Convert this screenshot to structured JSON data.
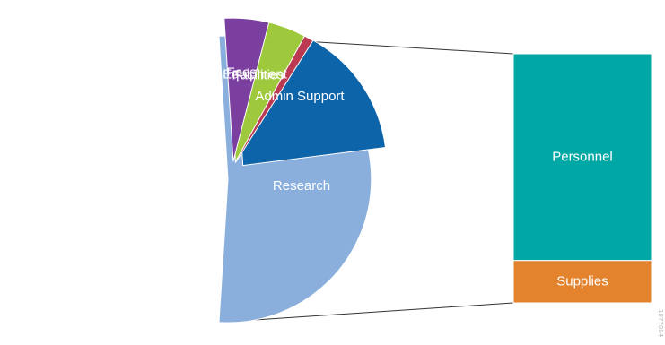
{
  "chart_data": {
    "type": "pie",
    "subtype": "bar-of-pie",
    "title": "",
    "series": [
      {
        "name": "",
        "slices": [
          {
            "label": "Research",
            "value": 52,
            "color": "#8aafdc"
          },
          {
            "label": "Admin Support",
            "value": 24,
            "color": "#0e64a8"
          },
          {
            "label": "Facilities",
            "value": 10,
            "color": "#bb3a52"
          },
          {
            "label": "Equipment",
            "value": 9,
            "color": "#9fc93d"
          },
          {
            "label": "Fees",
            "value": 5,
            "color": "#7b3fa0"
          }
        ]
      },
      {
        "name": "",
        "breakdown_of": "Research",
        "segments": [
          {
            "label": "Personnel",
            "value": 83,
            "color": "#00a8a5"
          },
          {
            "label": "Supplies",
            "value": 17,
            "color": "#e3832e"
          }
        ]
      }
    ],
    "side_text": "1077004"
  }
}
